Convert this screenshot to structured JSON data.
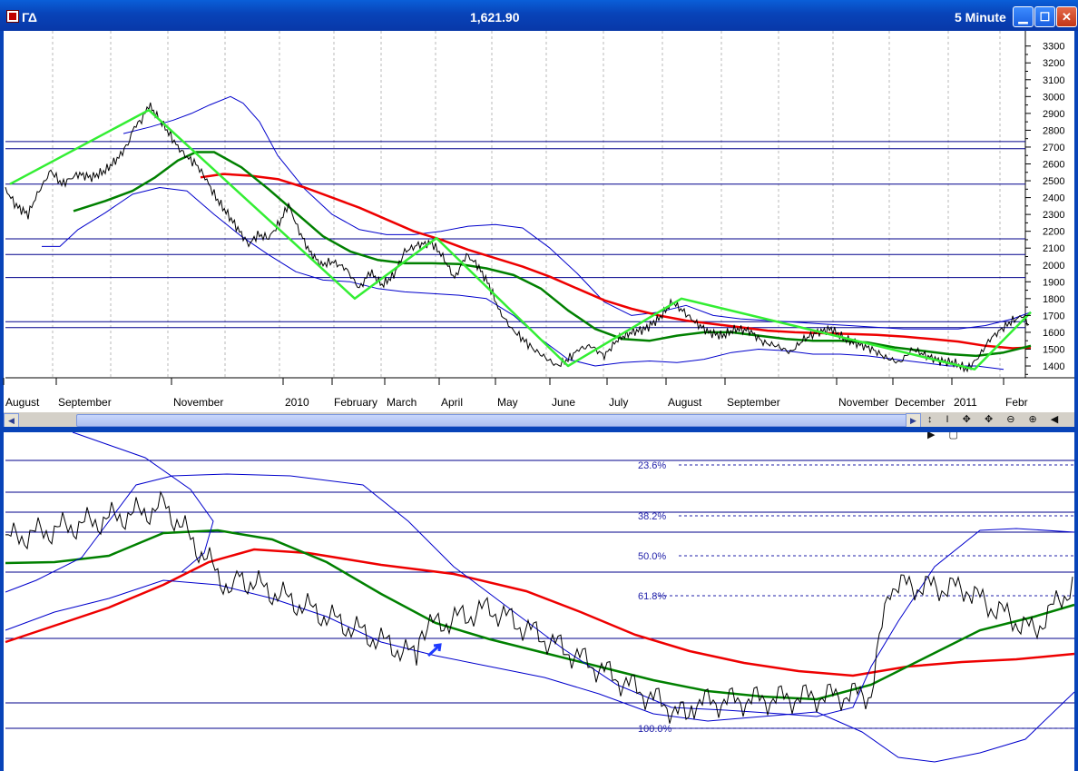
{
  "window": {
    "symbol": "ΓΔ",
    "price": "1,621.90",
    "interval": "5 Minute",
    "buttons": [
      "minimize",
      "maximize",
      "close"
    ]
  },
  "colors": {
    "price": "#000000",
    "bands": "#0000cc",
    "ma_fast": "#008000",
    "ma_slow": "#ee0000",
    "zigzag": "#33ee33",
    "hlines": "#00008b",
    "fib": "#2222aa"
  },
  "chart_data": [
    {
      "type": "line",
      "title": "",
      "x_tick_labels": [
        "August",
        "September",
        "November",
        "2010",
        "February",
        "March",
        "April",
        "May",
        "June",
        "July",
        "August",
        "September",
        "November",
        "December",
        "2011",
        "Febr"
      ],
      "y_tick_labels": [
        "3300",
        "3200",
        "3100",
        "3000",
        "2900",
        "2800",
        "2700",
        "2600",
        "2500",
        "2400",
        "2300",
        "2200",
        "2100",
        "2000",
        "1900",
        "1800",
        "1700",
        "1600",
        "1500",
        "1400"
      ],
      "ylim": [
        1330,
        3390
      ],
      "horizontal_levels": [
        2733,
        2690,
        2480,
        2155,
        2062,
        1925,
        1663,
        1628
      ],
      "series": [
        {
          "key": "price",
          "x": [
            0,
            12,
            25,
            35,
            50,
            62,
            80,
            95,
            110,
            125,
            135,
            142,
            150,
            158,
            165,
            178,
            190,
            200,
            210,
            220,
            232,
            245,
            258,
            268,
            278,
            290,
            302,
            312,
            322,
            335,
            348,
            360,
            375,
            390,
            402,
            415,
            428,
            440,
            455,
            470,
            482,
            495,
            508,
            520,
            533,
            545,
            558,
            570,
            582,
            595,
            608,
            620,
            632,
            645,
            660,
            675,
            690,
            705,
            720,
            735,
            748,
            760,
            775,
            790,
            805,
            820,
            835,
            850,
            865,
            880,
            895,
            910,
            925,
            940,
            955,
            970,
            985,
            1000,
            1015,
            1030,
            1045,
            1060,
            1072,
            1085,
            1098,
            1110,
            1122,
            1130
          ],
          "y": [
            2450,
            2350,
            2300,
            2420,
            2560,
            2480,
            2540,
            2520,
            2560,
            2640,
            2720,
            2820,
            2860,
            2950,
            2900,
            2800,
            2700,
            2640,
            2600,
            2520,
            2400,
            2300,
            2200,
            2120,
            2180,
            2160,
            2250,
            2360,
            2220,
            2080,
            2000,
            2020,
            1980,
            1860,
            1960,
            1880,
            1940,
            2080,
            2120,
            2130,
            2050,
            1920,
            2060,
            2000,
            1880,
            1720,
            1620,
            1560,
            1500,
            1450,
            1400,
            1440,
            1500,
            1520,
            1460,
            1560,
            1600,
            1620,
            1680,
            1780,
            1720,
            1660,
            1600,
            1580,
            1620,
            1610,
            1540,
            1520,
            1480,
            1560,
            1600,
            1620,
            1560,
            1530,
            1500,
            1450,
            1420,
            1500,
            1460,
            1430,
            1420,
            1380,
            1450,
            1560,
            1620,
            1670,
            1700,
            1620
          ]
        },
        {
          "key": "ma_fast",
          "x": [
            75,
            110,
            140,
            165,
            190,
            210,
            230,
            260,
            290,
            320,
            350,
            380,
            410,
            440,
            470,
            500,
            530,
            560,
            590,
            620,
            650,
            680,
            710,
            740,
            770,
            800,
            830,
            860,
            890,
            920,
            950,
            980,
            1010,
            1040,
            1070,
            1100,
            1130
          ],
          "y": [
            2320,
            2380,
            2440,
            2520,
            2620,
            2670,
            2670,
            2580,
            2450,
            2310,
            2170,
            2080,
            2030,
            2010,
            2010,
            2005,
            1980,
            1940,
            1860,
            1730,
            1620,
            1560,
            1550,
            1580,
            1600,
            1600,
            1580,
            1560,
            1550,
            1550,
            1540,
            1510,
            1490,
            1470,
            1460,
            1480,
            1520
          ]
        },
        {
          "key": "ma_slow",
          "x": [
            215,
            240,
            270,
            300,
            330,
            360,
            390,
            420,
            450,
            480,
            510,
            540,
            570,
            600,
            630,
            660,
            690,
            720,
            750,
            780,
            810,
            840,
            870,
            900,
            930,
            960,
            990,
            1020,
            1050,
            1080,
            1110,
            1130
          ],
          "y": [
            2520,
            2540,
            2530,
            2510,
            2460,
            2400,
            2340,
            2270,
            2200,
            2150,
            2090,
            2040,
            1990,
            1930,
            1860,
            1790,
            1740,
            1700,
            1670,
            1650,
            1630,
            1610,
            1600,
            1595,
            1590,
            1585,
            1575,
            1560,
            1545,
            1520,
            1505,
            1510
          ]
        },
        {
          "key": "upper_band",
          "x": [
            130,
            160,
            185,
            205,
            225,
            248,
            262,
            280,
            300,
            330,
            360,
            390,
            420,
            450,
            480,
            510,
            540,
            570,
            600,
            630,
            660,
            690,
            720,
            750,
            780,
            810,
            840,
            870,
            900,
            930,
            960,
            990,
            1020,
            1050,
            1080,
            1110,
            1130
          ],
          "y": [
            2780,
            2820,
            2860,
            2900,
            2950,
            3000,
            2960,
            2850,
            2650,
            2450,
            2300,
            2210,
            2180,
            2180,
            2200,
            2230,
            2240,
            2220,
            2100,
            1950,
            1780,
            1700,
            1720,
            1760,
            1700,
            1680,
            1670,
            1660,
            1650,
            1640,
            1630,
            1620,
            1620,
            1620,
            1640,
            1680,
            1720
          ]
        },
        {
          "key": "lower_band",
          "x": [
            40,
            60,
            80,
            110,
            140,
            170,
            200,
            230,
            260,
            290,
            320,
            350,
            380,
            410,
            440,
            470,
            500,
            530,
            560,
            590,
            620,
            650,
            680,
            710,
            740,
            770,
            800,
            830,
            860,
            890,
            920,
            950,
            980,
            1010,
            1040,
            1070,
            1100
          ],
          "y": [
            2110,
            2110,
            2210,
            2310,
            2420,
            2460,
            2440,
            2300,
            2170,
            2060,
            1960,
            1910,
            1900,
            1860,
            1840,
            1830,
            1820,
            1800,
            1700,
            1560,
            1440,
            1400,
            1420,
            1430,
            1420,
            1440,
            1480,
            1500,
            1490,
            1470,
            1470,
            1460,
            1440,
            1420,
            1400,
            1400,
            1380
          ]
        },
        {
          "key": "zigzag",
          "x": [
            5,
            158,
            385,
            475,
            620,
            745,
            1068,
            1130
          ],
          "y": [
            2480,
            2920,
            1800,
            2160,
            1400,
            1800,
            1380,
            1720
          ]
        }
      ]
    },
    {
      "type": "line",
      "title": "",
      "fib_labels": [
        "23.6%",
        "38.2%",
        "50.0%",
        "61.8%",
        "100.0%"
      ],
      "fib_values": [
        23.6,
        38.2,
        50.0,
        61.8,
        100.0
      ]
    }
  ],
  "scrollbar": {
    "left_arrow": "◀",
    "right_arrow": "▶",
    "tools": "↕ I ✥ ✥ ⊖ ⊕ ◀ ▶ ▢"
  }
}
